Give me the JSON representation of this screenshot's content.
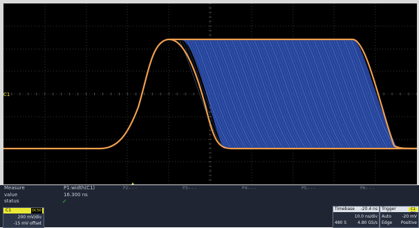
{
  "colors": {
    "screen_background": "#000000",
    "grid": "#3a3a3a",
    "trace_edge": "#f0a050",
    "trace_fill": "#2a4aa8",
    "channel_yellow": "#e9e934",
    "status_green": "#3ed13e",
    "panel_background": "#1f2533"
  },
  "screen": {
    "channel_marker": "C1"
  },
  "measure": {
    "row_label": "Measure",
    "value_label": "value",
    "status_label": "status",
    "p1": "P1:width(C1)",
    "p2": "P2:- - -",
    "p3": "P3:- - -",
    "p4": "P4:- - -",
    "p5": "P5:- - -",
    "p6": "P6:- - -",
    "p1_value": "16.300 ns",
    "status_icon": "checkmark-icon",
    "status_value": "✓"
  },
  "channel": {
    "name": "C1",
    "coupling": "DC50",
    "vdiv": "200 mV/div",
    "offset": "-15 mV offset"
  },
  "timebase": {
    "label": "Timebase",
    "delay": "-20.4 ns",
    "tdiv": "10.0 ns/div",
    "samples": "480 S",
    "rate": "4.80 GS/s"
  },
  "trigger": {
    "label": "Trigger",
    "badge": "C1 DC",
    "mode": "Auto",
    "level": "-20 mV",
    "type": "Edge",
    "slope": "Positive"
  }
}
